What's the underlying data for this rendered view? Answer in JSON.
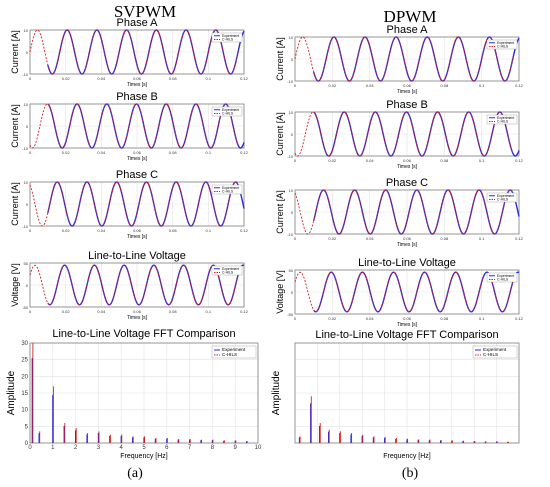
{
  "figure": {
    "left_title": "SVPWM",
    "right_title": "DPWM",
    "left_caption": "(a)",
    "right_caption": "(b)"
  },
  "colors": {
    "experiment": "#2b2bd6",
    "chils": "#d42020",
    "grid": "#e2e2e2",
    "axis": "#808080"
  },
  "chart_data": [
    {
      "type": "line",
      "panel": "svpwm-phase-a",
      "title": "Phase A",
      "xlabel": "Times [s]",
      "ylabel": "Current [A]",
      "xlim": [
        0,
        0.12
      ],
      "ylim": [
        -10,
        10
      ],
      "x_ticks": [
        "0",
        "0.02",
        "0.04",
        "0.06",
        "0.08",
        "0.1",
        "0.12"
      ],
      "y_ticks": [
        "10",
        "0",
        "-10"
      ],
      "legend": [
        "Experiment",
        "C-HILS"
      ],
      "legend_position": "right",
      "frequency_hz": 60,
      "amplitude": 10,
      "phase_deg": 0,
      "experiment_start": 0.01,
      "chils_end": 0.117
    },
    {
      "type": "line",
      "panel": "svpwm-phase-b",
      "title": "Phase B",
      "xlabel": "Times [s]",
      "ylabel": "Current [A]",
      "xlim": [
        0,
        0.12
      ],
      "ylim": [
        -10,
        10
      ],
      "x_ticks": [
        "0",
        "0.02",
        "0.04",
        "0.06",
        "0.08",
        "0.1",
        "0.12"
      ],
      "y_ticks": [
        "10",
        "0",
        "-10"
      ],
      "legend": [
        "Experiment",
        "C-HILS"
      ],
      "legend_position": "right",
      "frequency_hz": 60,
      "amplitude": 10,
      "phase_deg": -120,
      "experiment_start": 0.01,
      "chils_end": 0.117
    },
    {
      "type": "line",
      "panel": "svpwm-phase-c",
      "title": "Phase C",
      "xlabel": "Times [s]",
      "ylabel": "Current [A]",
      "xlim": [
        0,
        0.12
      ],
      "ylim": [
        -10,
        10
      ],
      "x_ticks": [
        "0",
        "0.02",
        "0.04",
        "0.06",
        "0.08",
        "0.1",
        "0.12"
      ],
      "y_ticks": [
        "10",
        "0",
        "-10"
      ],
      "legend": [
        "Experiment",
        "C-HILS"
      ],
      "legend_position": "right",
      "frequency_hz": 60,
      "amplitude": 10,
      "phase_deg": 120,
      "experiment_start": 0.01,
      "chils_end": 0.117
    },
    {
      "type": "line",
      "panel": "svpwm-line-voltage",
      "title": "Line-to-Line Voltage",
      "xlabel": "Times [s]",
      "ylabel": "Voltage [V]",
      "xlim": [
        0,
        0.12
      ],
      "ylim": [
        -50,
        50
      ],
      "x_ticks": [
        "0",
        "0.02",
        "0.04",
        "0.06",
        "0.08",
        "0.1",
        "0.12"
      ],
      "y_ticks": [
        "50",
        "0",
        "-50"
      ],
      "legend": [
        "Experiment",
        "C-HILS"
      ],
      "legend_position": "top-right",
      "frequency_hz": 60,
      "amplitude": 45,
      "phase_deg": 30,
      "experiment_start": 0.01,
      "chils_end": 0.117
    },
    {
      "type": "bar",
      "panel": "svpwm-fft",
      "title": "Line-to-Line Voltage FFT Comparison",
      "xlabel": "Frequency [Hz]",
      "ylabel": "Amplitude",
      "xlim": [
        0,
        10
      ],
      "ylim": [
        0,
        30
      ],
      "x_ticks": [
        "0",
        "1",
        "2",
        "3",
        "4",
        "5",
        "6",
        "7",
        "8",
        "9",
        "10"
      ],
      "y_ticks": [
        "0",
        "5",
        "10",
        "15",
        "20",
        "25",
        "30"
      ],
      "legend": [
        "Experiment",
        "C-HILS"
      ],
      "legend_position": "top-right",
      "peaks": [
        {
          "f": 0.1,
          "a": 30
        },
        {
          "f": 0.4,
          "a": 3.5
        },
        {
          "f": 1.0,
          "a": 17
        },
        {
          "f": 1.5,
          "a": 6
        },
        {
          "f": 2.0,
          "a": 4.5
        },
        {
          "f": 2.5,
          "a": 3
        },
        {
          "f": 3.0,
          "a": 3.5
        },
        {
          "f": 3.5,
          "a": 2.5
        },
        {
          "f": 4.0,
          "a": 2.5
        },
        {
          "f": 4.5,
          "a": 2
        },
        {
          "f": 5.0,
          "a": 2
        },
        {
          "f": 5.5,
          "a": 1.5
        },
        {
          "f": 6.0,
          "a": 1.5
        },
        {
          "f": 6.5,
          "a": 1.2
        },
        {
          "f": 7.0,
          "a": 1.2
        },
        {
          "f": 7.5,
          "a": 1
        },
        {
          "f": 8.0,
          "a": 1
        },
        {
          "f": 8.5,
          "a": 0.8
        },
        {
          "f": 9.0,
          "a": 0.8
        },
        {
          "f": 9.5,
          "a": 0.6
        }
      ]
    },
    {
      "type": "line",
      "panel": "dpwm-phase-a",
      "title": "Phase A",
      "xlabel": "Times [s]",
      "ylabel": "Current [A]",
      "xlim": [
        0,
        0.12
      ],
      "ylim": [
        -10,
        10
      ],
      "x_ticks": [
        "0",
        "0.02",
        "0.04",
        "0.06",
        "0.08",
        "0.1",
        "0.12"
      ],
      "y_ticks": [
        "10",
        "0",
        "-10"
      ],
      "legend": [
        "Experiment",
        "C-HILS"
      ],
      "legend_position": "right",
      "frequency_hz": 60,
      "amplitude": 10,
      "phase_deg": 0,
      "experiment_start": 0.01,
      "chils_end": 0.117
    },
    {
      "type": "line",
      "panel": "dpwm-phase-b",
      "title": "Phase B",
      "xlabel": "Times [s]",
      "ylabel": "Current [A]",
      "xlim": [
        0,
        0.12
      ],
      "ylim": [
        -10,
        10
      ],
      "x_ticks": [
        "0",
        "0.02",
        "0.04",
        "0.06",
        "0.08",
        "0.1",
        "0.12"
      ],
      "y_ticks": [
        "10",
        "0",
        "-10"
      ],
      "legend": [
        "Experiment",
        "C-HILS"
      ],
      "legend_position": "right",
      "frequency_hz": 60,
      "amplitude": 10,
      "phase_deg": -120,
      "experiment_start": 0.01,
      "chils_end": 0.117
    },
    {
      "type": "line",
      "panel": "dpwm-phase-c",
      "title": "Phase C",
      "xlabel": "Times [s]",
      "ylabel": "Current [A]",
      "xlim": [
        0,
        0.12
      ],
      "ylim": [
        -10,
        10
      ],
      "x_ticks": [
        "0",
        "0.02",
        "0.04",
        "0.06",
        "0.08",
        "0.1",
        "0.12"
      ],
      "y_ticks": [
        "10",
        "0",
        "-10"
      ],
      "legend": [
        "Experiment",
        "C-HILS"
      ],
      "legend_position": "right",
      "frequency_hz": 60,
      "amplitude": 10,
      "phase_deg": 120,
      "experiment_start": 0.01,
      "chils_end": 0.117
    },
    {
      "type": "line",
      "panel": "dpwm-line-voltage",
      "title": "Line-to-Line Voltage",
      "xlabel": "Times [s]",
      "ylabel": "Voltage [V]",
      "xlim": [
        0,
        0.12
      ],
      "ylim": [
        -50,
        50
      ],
      "x_ticks": [
        "0",
        "0.02",
        "0.04",
        "0.06",
        "0.08",
        "0.1",
        "0.12"
      ],
      "y_ticks": [
        "50",
        "0",
        "-50"
      ],
      "legend": [
        "Experiment",
        "C-HILS"
      ],
      "legend_position": "top-right",
      "frequency_hz": 60,
      "amplitude": 45,
      "phase_deg": 30,
      "experiment_start": 0.01,
      "chils_end": 0.117
    },
    {
      "type": "bar",
      "panel": "dpwm-fft",
      "title": "Line-to-Line Voltage FFT Comparison",
      "xlabel": "Frequency [Hz]",
      "ylabel": "Amplitude",
      "xlim": [
        0,
        10
      ],
      "ylim": [
        0,
        30
      ],
      "x_ticks": [
        "",
        "",
        "",
        "",
        "",
        "",
        "",
        "",
        "",
        "",
        ""
      ],
      "y_ticks": [
        "",
        "",
        "",
        "",
        "",
        "",
        ""
      ],
      "legend": [
        "Experiment",
        "C-HILS"
      ],
      "legend_position": "top-right",
      "peaks": [
        {
          "f": 0.2,
          "a": 2
        },
        {
          "f": 0.7,
          "a": 14
        },
        {
          "f": 1.1,
          "a": 6
        },
        {
          "f": 1.5,
          "a": 4
        },
        {
          "f": 2.0,
          "a": 3.5
        },
        {
          "f": 2.5,
          "a": 3
        },
        {
          "f": 3.0,
          "a": 2.5
        },
        {
          "f": 3.5,
          "a": 2
        },
        {
          "f": 4.0,
          "a": 1.8
        },
        {
          "f": 4.5,
          "a": 1.5
        },
        {
          "f": 5.0,
          "a": 1.3
        },
        {
          "f": 5.5,
          "a": 1.1
        },
        {
          "f": 6.0,
          "a": 1
        },
        {
          "f": 6.5,
          "a": 0.9
        },
        {
          "f": 7.0,
          "a": 0.8
        },
        {
          "f": 7.5,
          "a": 0.7
        },
        {
          "f": 8.0,
          "a": 0.6
        },
        {
          "f": 8.5,
          "a": 0.5
        },
        {
          "f": 9.0,
          "a": 0.5
        },
        {
          "f": 9.5,
          "a": 0.4
        }
      ]
    }
  ]
}
